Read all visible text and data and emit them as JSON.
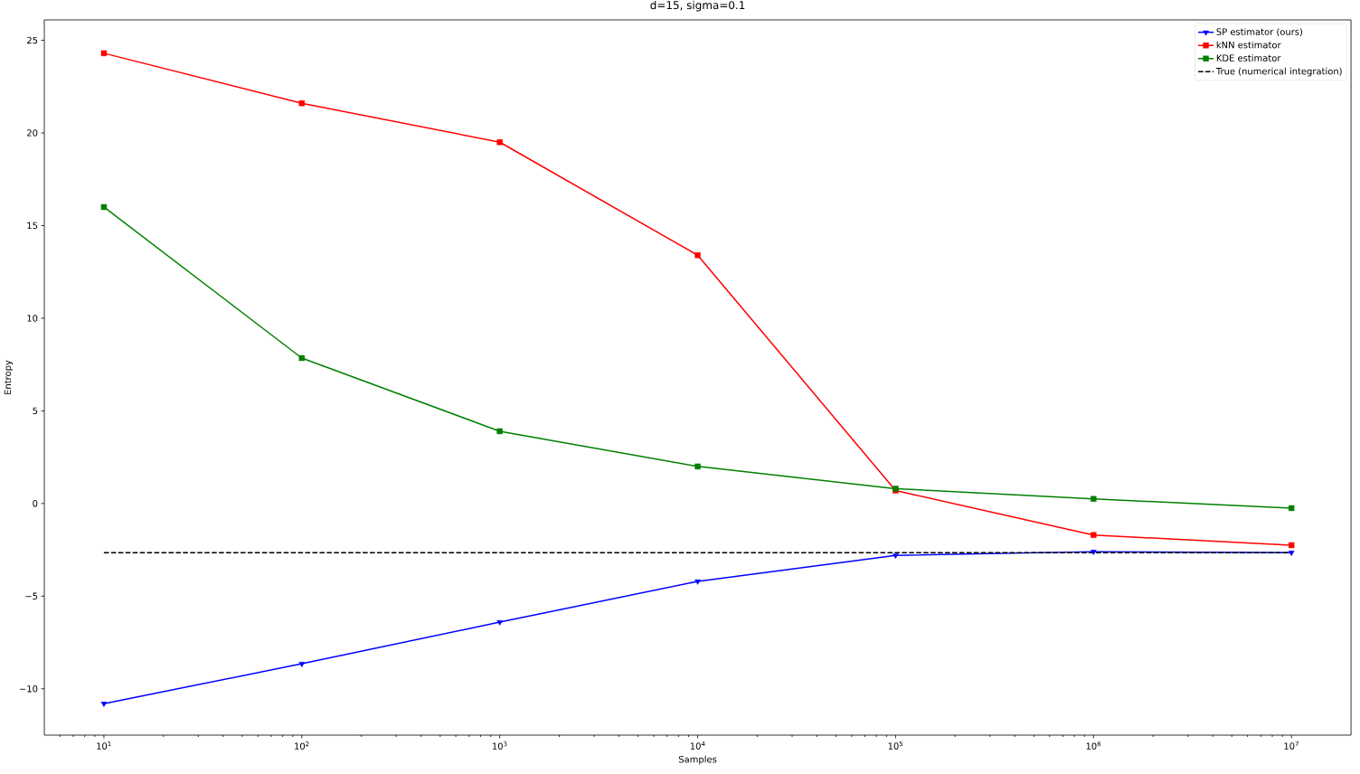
{
  "chart_data": {
    "type": "line",
    "title": "d=15, sigma=0.1",
    "xlabel": "Samples",
    "ylabel": "Entropy",
    "x": [
      10,
      100,
      1000,
      10000,
      100000,
      1000000,
      10000000
    ],
    "series": [
      {
        "name": "SP estimator (ours)",
        "color": "#0000ff",
        "marker": "triangle",
        "line_style": "solid",
        "values": [
          -10.8,
          -8.65,
          -6.4,
          -4.2,
          -2.8,
          -2.6,
          -2.65
        ]
      },
      {
        "name": "kNN estimator",
        "color": "#ff0000",
        "marker": "square",
        "line_style": "solid",
        "values": [
          24.3,
          21.6,
          19.5,
          13.4,
          0.7,
          -1.7,
          -2.25
        ]
      },
      {
        "name": "KDE estimator",
        "color": "#008000",
        "marker": "square",
        "line_style": "solid",
        "values": [
          16.0,
          7.85,
          3.9,
          2.0,
          0.8,
          0.25,
          -0.25
        ]
      },
      {
        "name": "True (numerical integration)",
        "color": "#000000",
        "marker": "none",
        "line_style": "dashed",
        "values": [
          -2.65,
          -2.65,
          -2.65,
          -2.65,
          -2.65,
          -2.65,
          -2.65
        ]
      }
    ],
    "log": "x",
    "xlim": [
      5,
      20000000
    ],
    "ylim": [
      -12.5,
      26.1
    ],
    "xticks": [
      {
        "value": 6,
        "label": null
      },
      {
        "value": 7,
        "label": null
      },
      {
        "value": 8,
        "label": null
      },
      {
        "value": 9,
        "label": null
      },
      {
        "value": 10,
        "label": "10$^{1}$"
      },
      {
        "value": 20,
        "label": null
      },
      {
        "value": 30,
        "label": null
      },
      {
        "value": 40,
        "label": null
      },
      {
        "value": 50,
        "label": null
      },
      {
        "value": 60,
        "label": null
      },
      {
        "value": 70,
        "label": null
      },
      {
        "value": 80,
        "label": null
      },
      {
        "value": 90,
        "label": null
      },
      {
        "value": 100,
        "label": "10$^{2}$"
      },
      {
        "value": 200,
        "label": null
      },
      {
        "value": 300,
        "label": null
      },
      {
        "value": 400,
        "label": null
      },
      {
        "value": 500,
        "label": null
      },
      {
        "value": 600,
        "label": null
      },
      {
        "value": 700,
        "label": null
      },
      {
        "value": 800,
        "label": null
      },
      {
        "value": 900,
        "label": null
      },
      {
        "value": 1000,
        "label": "10$^{3}$"
      },
      {
        "value": 2000,
        "label": null
      },
      {
        "value": 3000,
        "label": null
      },
      {
        "value": 4000,
        "label": null
      },
      {
        "value": 5000,
        "label": null
      },
      {
        "value": 6000,
        "label": null
      },
      {
        "value": 7000,
        "label": null
      },
      {
        "value": 8000,
        "label": null
      },
      {
        "value": 9000,
        "label": null
      },
      {
        "value": 10000,
        "label": "10$^{4}$"
      },
      {
        "value": 20000,
        "label": null
      },
      {
        "value": 30000,
        "label": null
      },
      {
        "value": 40000,
        "label": null
      },
      {
        "value": 50000,
        "label": null
      },
      {
        "value": 60000,
        "label": null
      },
      {
        "value": 70000,
        "label": null
      },
      {
        "value": 80000,
        "label": null
      },
      {
        "value": 90000,
        "label": null
      },
      {
        "value": 100000,
        "label": "10$^{5}$"
      },
      {
        "value": 200000,
        "label": null
      },
      {
        "value": 300000,
        "label": null
      },
      {
        "value": 400000,
        "label": null
      },
      {
        "value": 500000,
        "label": null
      },
      {
        "value": 600000,
        "label": null
      },
      {
        "value": 700000,
        "label": null
      },
      {
        "value": 800000,
        "label": null
      },
      {
        "value": 900000,
        "label": null
      },
      {
        "value": 1000000,
        "label": "10$^{6}$"
      },
      {
        "value": 2000000,
        "label": null
      },
      {
        "value": 3000000,
        "label": null
      },
      {
        "value": 4000000,
        "label": null
      },
      {
        "value": 5000000,
        "label": null
      },
      {
        "value": 6000000,
        "label": null
      },
      {
        "value": 7000000,
        "label": null
      },
      {
        "value": 8000000,
        "label": null
      },
      {
        "value": 9000000,
        "label": null
      },
      {
        "value": 10000000,
        "label": "10$^{7}$"
      }
    ],
    "yticks": [
      {
        "value": -10,
        "label": "−10"
      },
      {
        "value": -5,
        "label": "−5"
      },
      0,
      5,
      10,
      15,
      20,
      25
    ],
    "legend": "top right"
  }
}
